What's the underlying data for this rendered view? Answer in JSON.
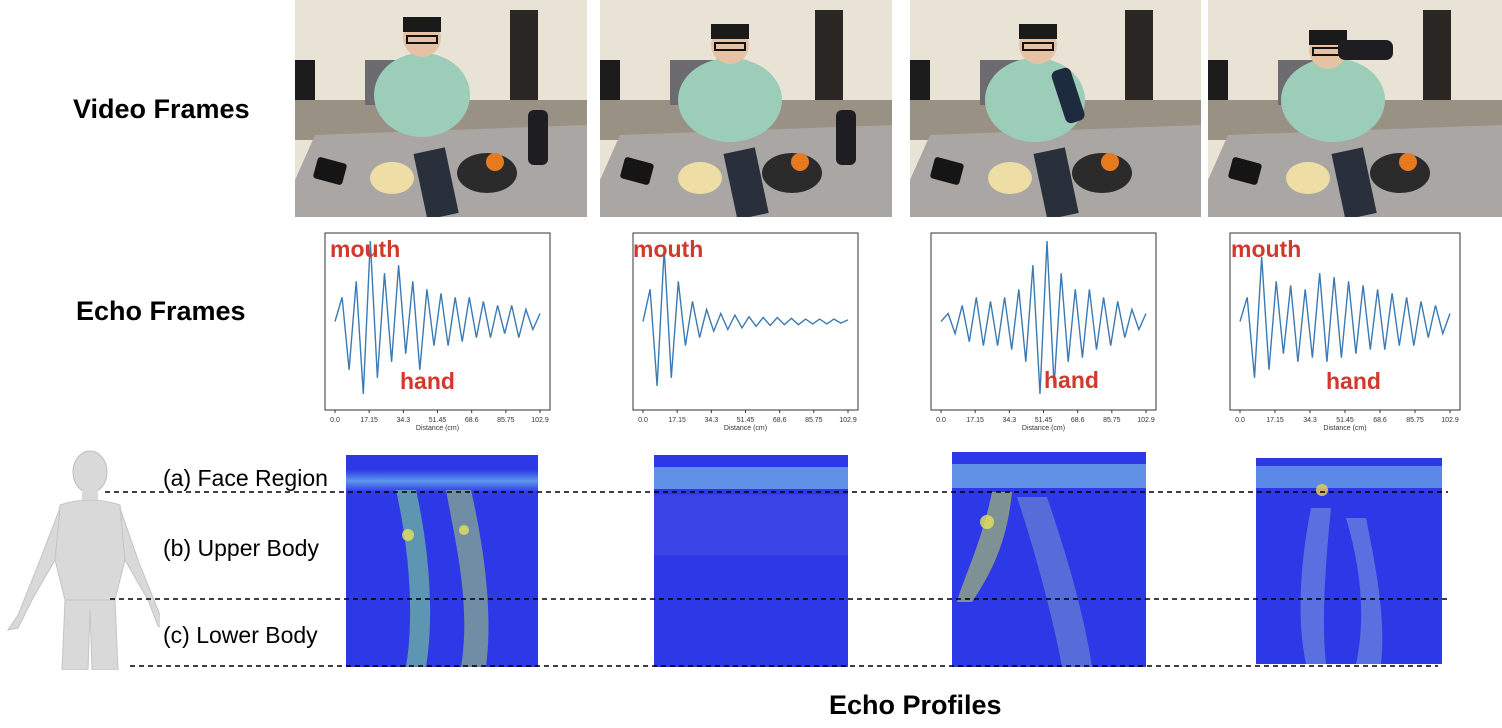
{
  "rows": {
    "video_label": "Video Frames",
    "echo_label": "Echo Frames"
  },
  "annotations": {
    "mouth": "mouth",
    "hand": "hand",
    "color": "#d0392b"
  },
  "echo_chart": {
    "xlabel": "Distance (cm)",
    "xticks": [
      "0.0",
      "17.15",
      "34.3",
      "51.45",
      "68.6",
      "85.75",
      "102.9"
    ],
    "line_color": "#3a7ab5"
  },
  "regions": {
    "a": "(a) Face Region",
    "b": "(b) Upper Body",
    "c": "(c) Lower Body"
  },
  "caption": "Echo Profiles",
  "colors": {
    "profile_bg": "#2d39e6",
    "body_model": "#d9d9d9"
  },
  "chart_data": [
    {
      "type": "line",
      "xlabel": "Distance (cm)",
      "xlim": [
        0,
        102.9
      ],
      "series": [
        {
          "values": [
            0.0,
            0.3,
            -0.6,
            0.5,
            -0.9,
            1.0,
            -0.7,
            0.6,
            -0.5,
            0.7,
            -0.4,
            0.5,
            -0.6,
            0.4,
            -0.3,
            0.35,
            -0.3,
            0.3,
            -0.25,
            0.3,
            -0.2,
            0.25,
            -0.2,
            0.2,
            -0.15,
            0.2,
            -0.2,
            0.15,
            -0.1,
            0.1
          ]
        }
      ]
    },
    {
      "type": "line",
      "xlabel": "Distance (cm)",
      "xlim": [
        0,
        102.9
      ],
      "series": [
        {
          "values": [
            0.0,
            0.4,
            -0.8,
            0.9,
            -0.7,
            0.5,
            -0.3,
            0.25,
            -0.2,
            0.15,
            -0.12,
            0.1,
            -0.1,
            0.08,
            -0.08,
            0.06,
            -0.06,
            0.05,
            -0.05,
            0.05,
            -0.04,
            0.04,
            -0.04,
            0.03,
            -0.03,
            0.03,
            -0.03,
            0.03,
            -0.02,
            0.02
          ]
        }
      ]
    },
    {
      "type": "line",
      "xlabel": "Distance (cm)",
      "xlim": [
        0,
        102.9
      ],
      "series": [
        {
          "values": [
            0.0,
            0.1,
            -0.15,
            0.2,
            -0.25,
            0.3,
            -0.3,
            0.25,
            -0.3,
            0.3,
            -0.35,
            0.4,
            -0.5,
            0.7,
            -0.9,
            1.0,
            -0.8,
            0.6,
            -0.5,
            0.4,
            -0.45,
            0.4,
            -0.35,
            0.3,
            -0.3,
            0.25,
            -0.2,
            0.15,
            -0.1,
            0.1
          ]
        }
      ]
    },
    {
      "type": "line",
      "xlabel": "Distance (cm)",
      "xlim": [
        0,
        102.9
      ],
      "series": [
        {
          "values": [
            0.0,
            0.3,
            -0.7,
            0.8,
            -0.6,
            0.5,
            -0.4,
            0.45,
            -0.5,
            0.4,
            -0.45,
            0.6,
            -0.5,
            0.55,
            -0.45,
            0.5,
            -0.4,
            0.45,
            -0.35,
            0.4,
            -0.35,
            0.35,
            -0.3,
            0.3,
            -0.3,
            0.25,
            -0.2,
            0.2,
            -0.15,
            0.1
          ]
        }
      ]
    }
  ]
}
